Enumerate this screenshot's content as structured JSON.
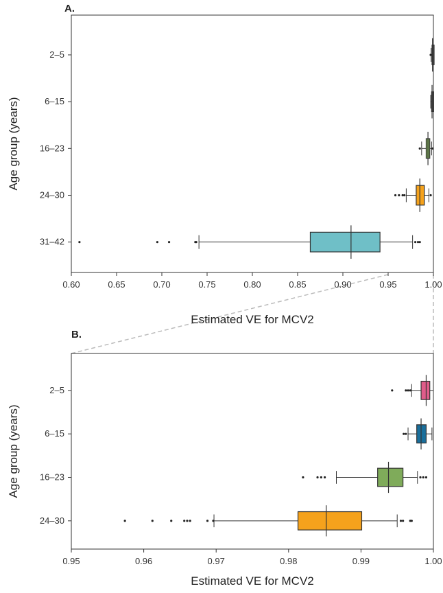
{
  "chart_data": [
    {
      "type": "boxplot",
      "panel_label": "A.",
      "xlabel": "Estimated VE for MCV2",
      "ylabel": "Age group (years)",
      "xlim": [
        0.6,
        1.0
      ],
      "xticks": [
        "0.60",
        "0.65",
        "0.70",
        "0.75",
        "0.80",
        "0.85",
        "0.90",
        "0.95",
        "1.00"
      ],
      "xtick_values": [
        0.6,
        0.65,
        0.7,
        0.75,
        0.8,
        0.85,
        0.9,
        0.95,
        1.0
      ],
      "categories": [
        "2–5",
        "6–15",
        "16–23",
        "24–30",
        "31–42"
      ],
      "boxes": [
        {
          "group": "2–5",
          "color": "#e05c8a",
          "whisker_low": 0.9975,
          "q1": 0.9985,
          "median": 0.999,
          "q3": 0.9995,
          "whisker_high": 1.0,
          "outliers": [
            0.997
          ]
        },
        {
          "group": "6–15",
          "color": "#1a6f9c",
          "whisker_low": 0.997,
          "q1": 0.998,
          "median": 0.9985,
          "q3": 0.999,
          "whisker_high": 1.0,
          "outliers": []
        },
        {
          "group": "16–23",
          "color": "#7fab5a",
          "whisker_low": 0.987,
          "q1": 0.992,
          "median": 0.994,
          "q3": 0.996,
          "whisker_high": 0.998,
          "outliers": [
            0.985,
            0.999
          ]
        },
        {
          "group": "24–30",
          "color": "#f5a21c",
          "whisker_low": 0.97,
          "q1": 0.981,
          "median": 0.985,
          "q3": 0.99,
          "whisker_high": 0.995,
          "outliers": [
            0.958,
            0.962,
            0.966,
            0.968,
            0.997
          ]
        },
        {
          "group": "31–42",
          "color": "#6fbfc7",
          "whisker_low": 0.741,
          "q1": 0.864,
          "median": 0.909,
          "q3": 0.941,
          "whisker_high": 0.977,
          "outliers": [
            0.609,
            0.695,
            0.708,
            0.737,
            0.738,
            0.98,
            0.983,
            0.985
          ]
        }
      ]
    },
    {
      "type": "boxplot",
      "panel_label": "B.",
      "xlabel": "Estimated VE for MCV2",
      "ylabel": "Age group (years)",
      "xlim": [
        0.95,
        1.0
      ],
      "xticks": [
        "0.95",
        "0.96",
        "0.97",
        "0.98",
        "0.99",
        "1.00"
      ],
      "xtick_values": [
        0.95,
        0.96,
        0.97,
        0.98,
        0.99,
        1.0
      ],
      "categories": [
        "2–5",
        "6–15",
        "16–23",
        "24–30"
      ],
      "boxes": [
        {
          "group": "2–5",
          "color": "#e05c8a",
          "whisker_low": 0.997,
          "q1": 0.9983,
          "median": 0.999,
          "q3": 0.9995,
          "whisker_high": 1.0,
          "outliers": [
            0.9943,
            0.9962,
            0.9965,
            0.9968
          ]
        },
        {
          "group": "6–15",
          "color": "#1a6f9c",
          "whisker_low": 0.9965,
          "q1": 0.9977,
          "median": 0.9983,
          "q3": 0.999,
          "whisker_high": 0.9998,
          "outliers": [
            0.9959,
            0.9962
          ]
        },
        {
          "group": "16–23",
          "color": "#7fab5a",
          "whisker_low": 0.9866,
          "q1": 0.9923,
          "median": 0.9938,
          "q3": 0.9958,
          "whisker_high": 0.9978,
          "outliers": [
            0.982,
            0.984,
            0.9845,
            0.985,
            0.9982,
            0.9986,
            0.999
          ]
        },
        {
          "group": "24–30",
          "color": "#f5a21c",
          "whisker_low": 0.9697,
          "q1": 0.9813,
          "median": 0.9852,
          "q3": 0.9901,
          "whisker_high": 0.995,
          "outliers": [
            0.9574,
            0.9612,
            0.9638,
            0.9656,
            0.966,
            0.9664,
            0.9688,
            0.9696,
            0.9955,
            0.9958,
            0.9968,
            0.997
          ]
        }
      ]
    }
  ]
}
